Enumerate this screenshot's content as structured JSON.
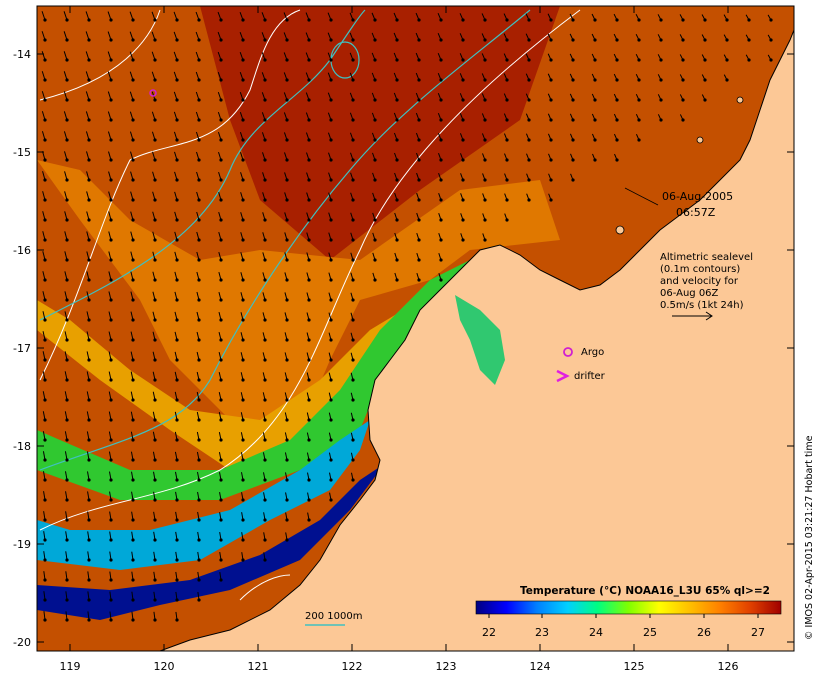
{
  "map": {
    "longitude_ticks": [
      "119",
      "120",
      "121",
      "122",
      "123",
      "124",
      "125",
      "126"
    ],
    "latitude_ticks": [
      "-14",
      "-15",
      "-16",
      "-17",
      "-18",
      "-19",
      "-20"
    ],
    "land_color": "#fcc896",
    "frame_color": "#000000"
  },
  "annotations": {
    "date": "06-Aug-2005",
    "time": "06:57Z",
    "legend_lines": [
      "Altimetric sealevel",
      "(0.1m contours)",
      "and velocity for",
      "06-Aug 06Z",
      "0.5m/s (1kt 24h)"
    ],
    "argo_label": "Argo",
    "drifter_label": "drifter",
    "depth_label": "200  1000m"
  },
  "colorbar": {
    "title": "Temperature (°C) NOAA16_L3U 65% ql>=2",
    "ticks": [
      "22",
      "23",
      "24",
      "25",
      "26",
      "27"
    ],
    "stops": [
      "#000080",
      "#0000ff",
      "#0080ff",
      "#00d0ff",
      "#00ff80",
      "#80ff00",
      "#ffff00",
      "#ffc000",
      "#ff8000",
      "#e04000",
      "#a00000"
    ]
  },
  "credit": "© IMOS 02-Apr-2015 03:21:27 Hobart time",
  "colors": {
    "contour": "#ffffff",
    "isobath": "#40c0c0",
    "argo": "#d020d0",
    "drifter": "#e020e0"
  }
}
